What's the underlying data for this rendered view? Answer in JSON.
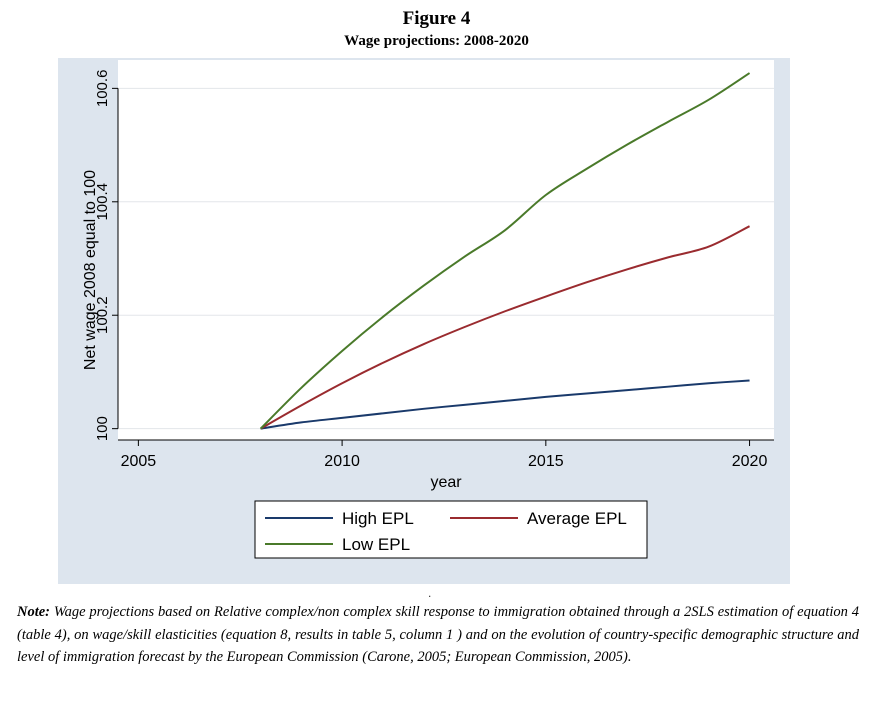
{
  "figure": {
    "label": "Figure 4",
    "subtitle": "Wage projections: 2008-2020"
  },
  "chart_data": {
    "type": "line",
    "title": "Wage projections: 2008-2020",
    "xlabel": "year",
    "ylabel": "Net wage 2008 equal to 100",
    "xlim": [
      2004.5,
      2020.6
    ],
    "ylim": [
      99.98,
      100.65
    ],
    "xticks": [
      2005,
      2010,
      2015,
      2020
    ],
    "yticks": [
      100,
      100.2,
      100.4,
      100.6
    ],
    "xtick_labels": [
      "2005",
      "2010",
      "2015",
      "2020"
    ],
    "ytick_labels": [
      "100",
      "100.2",
      "100.4",
      "100.6"
    ],
    "grid": true,
    "legend_position": "bottom",
    "x": [
      2008,
      2009,
      2010,
      2011,
      2012,
      2013,
      2014,
      2015,
      2016,
      2017,
      2018,
      2019,
      2020
    ],
    "series": [
      {
        "name": "High EPL",
        "color": "#1a3a6b",
        "values": [
          100.0,
          100.011,
          100.019,
          100.027,
          100.035,
          100.042,
          100.049,
          100.056,
          100.062,
          100.068,
          100.074,
          100.08,
          100.085
        ]
      },
      {
        "name": "Average EPL",
        "color": "#9a2b2f",
        "values": [
          100.0,
          100.041,
          100.08,
          100.116,
          100.149,
          100.179,
          100.207,
          100.233,
          100.258,
          100.281,
          100.302,
          100.321,
          100.357
        ]
      },
      {
        "name": "Low EPL",
        "color": "#4a7a2a",
        "values": [
          100.0,
          100.072,
          100.137,
          100.197,
          100.252,
          100.303,
          100.35,
          100.412,
          100.458,
          100.501,
          100.541,
          100.58,
          100.627
        ]
      }
    ]
  },
  "note": {
    "label": "Note:",
    "text": "Wage projections based on Relative complex/non complex skill response to immigration obtained through a 2SLS estimation of equation 4 (table 4), on wage/skill elasticities (equation 8, results in table 5, column 1 ) and on the evolution of country-specific demographic structure and level of immigration forecast by the European Commission (Carone, 2005; European Commission, 2005)."
  },
  "separator_dot": "."
}
